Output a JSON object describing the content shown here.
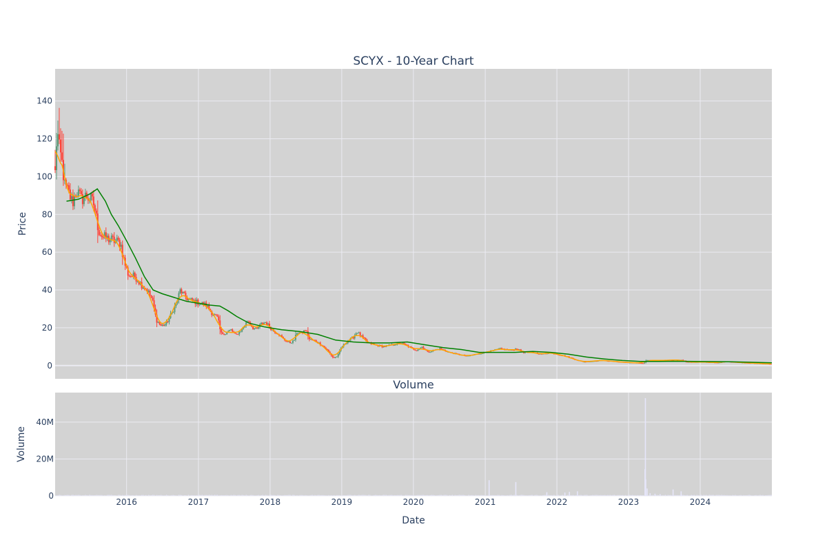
{
  "chart_data": [
    {
      "type": "candlestick",
      "title": "SCYX - 10-Year Chart",
      "ylabel": "Price",
      "ylim": [
        -7,
        157
      ],
      "x_range": [
        "2015-01-02",
        "2024-12-31"
      ],
      "x_ticks": [
        "2016",
        "2017",
        "2018",
        "2019",
        "2020",
        "2021",
        "2022",
        "2023",
        "2024"
      ],
      "y_ticks": [
        0,
        20,
        40,
        60,
        80,
        100,
        120,
        140
      ],
      "grid": true,
      "colors": {
        "plot_bg": "#d3d3d3",
        "grid": "#ebebf2",
        "increasing": "#5c9a79",
        "decreasing": "#ff4136",
        "ma_short": "#ffa500",
        "ma_long": "#008000"
      },
      "price_anchors": [
        [
          "2015-01-02",
          102
        ],
        [
          "2015-01-12",
          125
        ],
        [
          "2015-01-22",
          115
        ],
        [
          "2015-02-05",
          108
        ],
        [
          "2015-02-20",
          95
        ],
        [
          "2015-03-10",
          92
        ],
        [
          "2015-04-01",
          86
        ],
        [
          "2015-04-20",
          93
        ],
        [
          "2015-05-15",
          88
        ],
        [
          "2015-06-10",
          90
        ],
        [
          "2015-07-01",
          88
        ],
        [
          "2015-07-20",
          85
        ],
        [
          "2015-08-10",
          72
        ],
        [
          "2015-09-01",
          68
        ],
        [
          "2015-10-01",
          67
        ],
        [
          "2015-11-01",
          66
        ],
        [
          "2015-12-01",
          65
        ],
        [
          "2015-12-20",
          55
        ],
        [
          "2016-01-10",
          48
        ],
        [
          "2016-02-15",
          47
        ],
        [
          "2016-03-15",
          43
        ],
        [
          "2016-04-15",
          40
        ],
        [
          "2016-05-10",
          35
        ],
        [
          "2016-06-01",
          24
        ],
        [
          "2016-06-25",
          21
        ],
        [
          "2016-07-20",
          22
        ],
        [
          "2016-08-15",
          27
        ],
        [
          "2016-09-10",
          33
        ],
        [
          "2016-10-01",
          40
        ],
        [
          "2016-10-20",
          37
        ],
        [
          "2016-11-10",
          35
        ],
        [
          "2016-12-10",
          34
        ],
        [
          "2017-01-10",
          33
        ],
        [
          "2017-02-10",
          32
        ],
        [
          "2017-03-10",
          28
        ],
        [
          "2017-04-10",
          25
        ],
        [
          "2017-04-25",
          17
        ],
        [
          "2017-05-20",
          17
        ],
        [
          "2017-06-15",
          19
        ],
        [
          "2017-07-10",
          16
        ],
        [
          "2017-08-10",
          19
        ],
        [
          "2017-09-10",
          24
        ],
        [
          "2017-10-05",
          20
        ],
        [
          "2017-10-25",
          19
        ],
        [
          "2017-11-15",
          22
        ],
        [
          "2017-12-10",
          23
        ],
        [
          "2018-01-10",
          19
        ],
        [
          "2018-02-10",
          17
        ],
        [
          "2018-03-10",
          14
        ],
        [
          "2018-04-10",
          12
        ],
        [
          "2018-05-01",
          13
        ],
        [
          "2018-05-20",
          18
        ],
        [
          "2018-06-10",
          17
        ],
        [
          "2018-07-01",
          19
        ],
        [
          "2018-07-20",
          14
        ],
        [
          "2018-08-20",
          13
        ],
        [
          "2018-09-20",
          11
        ],
        [
          "2018-10-20",
          8
        ],
        [
          "2018-11-20",
          4
        ],
        [
          "2018-12-10",
          5
        ],
        [
          "2019-01-01",
          10
        ],
        [
          "2019-02-01",
          13
        ],
        [
          "2019-03-01",
          15
        ],
        [
          "2019-03-20",
          18
        ],
        [
          "2019-04-15",
          15
        ],
        [
          "2019-05-15",
          12
        ],
        [
          "2019-06-20",
          11
        ],
        [
          "2019-08-01",
          10
        ],
        [
          "2019-09-15",
          11
        ],
        [
          "2019-11-01",
          12
        ],
        [
          "2019-12-10",
          10
        ],
        [
          "2020-01-15",
          8
        ],
        [
          "2020-02-15",
          10
        ],
        [
          "2020-03-15",
          7
        ],
        [
          "2020-04-10",
          8
        ],
        [
          "2020-05-15",
          9
        ],
        [
          "2020-07-01",
          7
        ],
        [
          "2020-08-15",
          6
        ],
        [
          "2020-10-01",
          5
        ],
        [
          "2020-11-15",
          6
        ],
        [
          "2021-01-01",
          7
        ],
        [
          "2021-02-15",
          8
        ],
        [
          "2021-03-15",
          9
        ],
        [
          "2021-05-15",
          8
        ],
        [
          "2021-06-10",
          9
        ],
        [
          "2021-07-15",
          7
        ],
        [
          "2021-09-01",
          7
        ],
        [
          "2021-10-15",
          6
        ],
        [
          "2021-12-01",
          7
        ],
        [
          "2022-01-01",
          6
        ],
        [
          "2022-02-15",
          5
        ],
        [
          "2022-03-15",
          4
        ],
        [
          "2022-04-10",
          3
        ],
        [
          "2022-05-15",
          2
        ],
        [
          "2022-07-01",
          2.3
        ],
        [
          "2022-08-15",
          2.8
        ],
        [
          "2022-10-01",
          2.4
        ],
        [
          "2022-11-15",
          2.0
        ],
        [
          "2023-01-01",
          1.6
        ],
        [
          "2023-02-15",
          1.5
        ],
        [
          "2023-03-20",
          1.2
        ],
        [
          "2023-04-01",
          2.8
        ],
        [
          "2023-05-15",
          2.7
        ],
        [
          "2023-07-15",
          2.8
        ],
        [
          "2023-09-01",
          3.0
        ],
        [
          "2023-10-01",
          2.9
        ],
        [
          "2023-10-20",
          2.0
        ],
        [
          "2023-12-01",
          1.8
        ],
        [
          "2024-01-15",
          1.9
        ],
        [
          "2024-03-01",
          1.7
        ],
        [
          "2024-04-01",
          1.5
        ],
        [
          "2024-05-10",
          2.2
        ],
        [
          "2024-06-15",
          1.9
        ],
        [
          "2024-08-15",
          1.5
        ],
        [
          "2024-10-15",
          1.2
        ],
        [
          "2024-12-31",
          0.8
        ]
      ],
      "ma_long_anchors": [
        [
          "2015-03-01",
          87
        ],
        [
          "2015-05-01",
          88
        ],
        [
          "2015-07-01",
          91
        ],
        [
          "2015-08-05",
          93.5
        ],
        [
          "2015-09-15",
          87
        ],
        [
          "2015-10-15",
          80
        ],
        [
          "2015-11-20",
          74
        ],
        [
          "2016-01-01",
          66
        ],
        [
          "2016-02-15",
          57
        ],
        [
          "2016-04-01",
          47
        ],
        [
          "2016-05-15",
          40
        ],
        [
          "2016-07-01",
          38
        ],
        [
          "2016-09-01",
          36
        ],
        [
          "2016-11-01",
          34
        ],
        [
          "2017-01-01",
          33
        ],
        [
          "2017-03-01",
          32
        ],
        [
          "2017-04-20",
          31.5
        ],
        [
          "2017-06-01",
          29
        ],
        [
          "2017-07-15",
          26
        ],
        [
          "2017-09-15",
          22.5
        ],
        [
          "2017-12-01",
          20.5
        ],
        [
          "2018-03-01",
          19
        ],
        [
          "2018-06-01",
          18
        ],
        [
          "2018-09-01",
          16.5
        ],
        [
          "2018-12-01",
          13.5
        ],
        [
          "2019-03-01",
          12.5
        ],
        [
          "2019-06-01",
          12
        ],
        [
          "2019-09-01",
          12
        ],
        [
          "2019-12-01",
          12.5
        ],
        [
          "2020-03-01",
          11
        ],
        [
          "2020-06-01",
          9.5
        ],
        [
          "2020-09-01",
          8.5
        ],
        [
          "2020-12-01",
          7
        ],
        [
          "2021-03-01",
          7
        ],
        [
          "2021-06-01",
          7
        ],
        [
          "2021-09-01",
          7.5
        ],
        [
          "2021-12-01",
          7
        ],
        [
          "2022-03-01",
          6
        ],
        [
          "2022-06-01",
          4.5
        ],
        [
          "2022-09-01",
          3.5
        ],
        [
          "2022-12-01",
          2.7
        ],
        [
          "2023-03-01",
          2.2
        ],
        [
          "2023-06-01",
          2.2
        ],
        [
          "2023-09-01",
          2.3
        ],
        [
          "2023-12-01",
          2.2
        ],
        [
          "2024-03-01",
          2.1
        ],
        [
          "2024-06-01",
          2.0
        ],
        [
          "2024-09-01",
          1.8
        ],
        [
          "2024-12-31",
          1.5
        ]
      ]
    },
    {
      "type": "bar",
      "title": "Volume",
      "xlabel": "Date",
      "ylabel": "Volume",
      "ylim": [
        0,
        56000000
      ],
      "y_ticks": [
        0,
        20000000,
        40000000
      ],
      "y_tick_labels": [
        "0",
        "20M",
        "40M"
      ],
      "x_ticks": [
        "2016",
        "2017",
        "2018",
        "2019",
        "2020",
        "2021",
        "2022",
        "2023",
        "2024"
      ],
      "colors": {
        "plot_bg": "#d3d3d3",
        "bar": "#e6e6fa"
      },
      "baseline_volume": 400000,
      "volume_spikes": [
        [
          "2021-01-20",
          8500000
        ],
        [
          "2021-06-05",
          7500000
        ],
        [
          "2021-11-10",
          2000000
        ],
        [
          "2022-02-10",
          1800000
        ],
        [
          "2022-03-05",
          2200000
        ],
        [
          "2022-04-15",
          2500000
        ],
        [
          "2023-03-25",
          14500000
        ],
        [
          "2023-03-27",
          53000000
        ],
        [
          "2023-03-29",
          9000000
        ],
        [
          "2023-04-05",
          4000000
        ],
        [
          "2023-04-20",
          1500000
        ],
        [
          "2023-05-15",
          1200000
        ],
        [
          "2023-06-10",
          1000000
        ],
        [
          "2023-08-15",
          3500000
        ],
        [
          "2023-09-25",
          2500000
        ]
      ]
    }
  ]
}
